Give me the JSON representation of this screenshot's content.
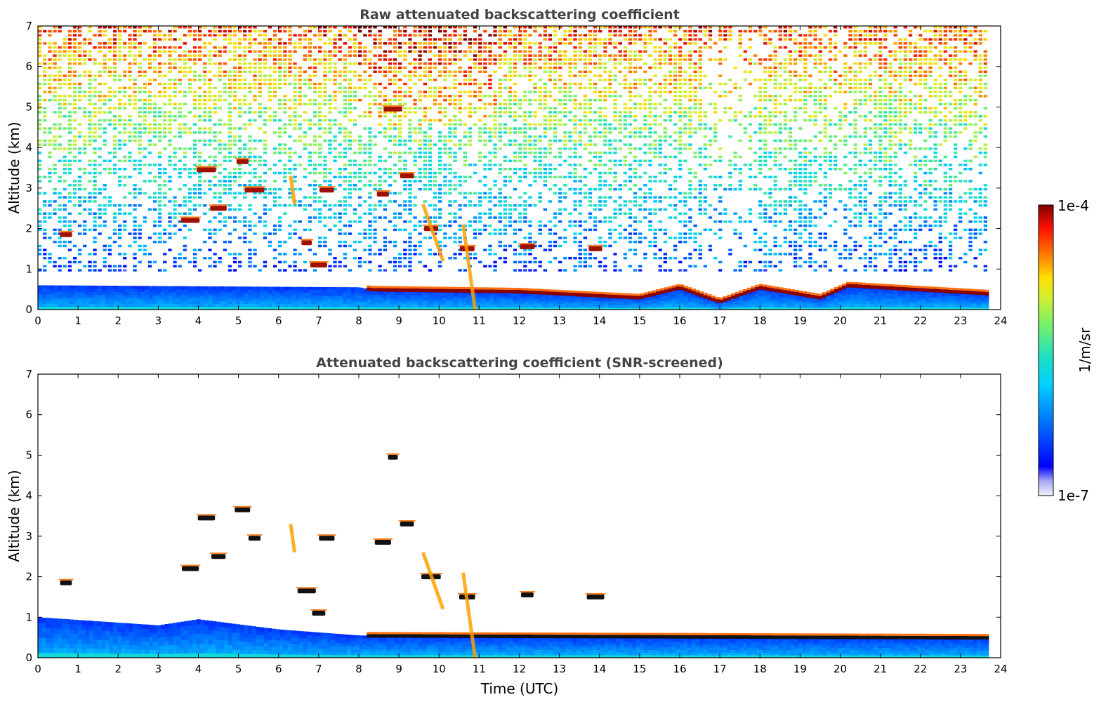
{
  "chart_data": [
    {
      "type": "heatmap",
      "title": "Raw attenuated backscattering coefficient",
      "xlabel": "",
      "ylabel": "Altitude (km)",
      "xlim": [
        0,
        24
      ],
      "ylim": [
        0,
        7
      ],
      "xticks": [
        "0",
        "1",
        "2",
        "3",
        "4",
        "5",
        "6",
        "7",
        "8",
        "9",
        "10",
        "11",
        "12",
        "13",
        "14",
        "15",
        "16",
        "17",
        "18",
        "19",
        "20",
        "21",
        "22",
        "23",
        "24"
      ],
      "yticks": [
        "0",
        "1",
        "2",
        "3",
        "4",
        "5",
        "6",
        "7"
      ],
      "data_end_time": 23.7,
      "boundary_layer_top_km": [
        {
          "t": 0,
          "alt": 0.6
        },
        {
          "t": 8,
          "alt": 0.55
        },
        {
          "t": 8.3,
          "alt": 0.5
        },
        {
          "t": 12,
          "alt": 0.45
        },
        {
          "t": 15,
          "alt": 0.3
        },
        {
          "t": 16,
          "alt": 0.55
        },
        {
          "t": 17,
          "alt": 0.2
        },
        {
          "t": 18,
          "alt": 0.55
        },
        {
          "t": 19.5,
          "alt": 0.3
        },
        {
          "t": 20.2,
          "alt": 0.6
        },
        {
          "t": 23.7,
          "alt": 0.4
        }
      ],
      "cloud_features": [
        {
          "t": 0.7,
          "alt": 1.85
        },
        {
          "t": 3.8,
          "alt": 2.2
        },
        {
          "t": 4.2,
          "alt": 3.45
        },
        {
          "t": 4.5,
          "alt": 2.5
        },
        {
          "t": 5.1,
          "alt": 3.65
        },
        {
          "t": 5.4,
          "alt": 2.95
        },
        {
          "t": 6.7,
          "alt": 1.65
        },
        {
          "t": 7.0,
          "alt": 1.1
        },
        {
          "t": 7.2,
          "alt": 2.95
        },
        {
          "t": 8.6,
          "alt": 2.85
        },
        {
          "t": 8.85,
          "alt": 4.95
        },
        {
          "t": 9.2,
          "alt": 3.3
        },
        {
          "t": 9.8,
          "alt": 2.0
        },
        {
          "t": 10.7,
          "alt": 1.5
        },
        {
          "t": 12.2,
          "alt": 1.55
        },
        {
          "t": 13.9,
          "alt": 1.5
        }
      ]
    },
    {
      "type": "heatmap",
      "title": "Attenuated backscattering coefficient (SNR-screened)",
      "xlabel": "Time (UTC)",
      "ylabel": "Altitude (km)",
      "xlim": [
        0,
        24
      ],
      "ylim": [
        0,
        7
      ],
      "xticks": [
        "0",
        "1",
        "2",
        "3",
        "4",
        "5",
        "6",
        "7",
        "8",
        "9",
        "10",
        "11",
        "12",
        "13",
        "14",
        "15",
        "16",
        "17",
        "18",
        "19",
        "20",
        "21",
        "22",
        "23",
        "24"
      ],
      "yticks": [
        "0",
        "1",
        "2",
        "3",
        "4",
        "5",
        "6",
        "7"
      ],
      "data_end_time": 23.7,
      "screened_layer_top_km": [
        {
          "t": 0,
          "alt": 1.0
        },
        {
          "t": 3,
          "alt": 0.8
        },
        {
          "t": 4,
          "alt": 0.95
        },
        {
          "t": 6,
          "alt": 0.7
        },
        {
          "t": 8,
          "alt": 0.55
        },
        {
          "t": 23.7,
          "alt": 0.5
        }
      ]
    }
  ],
  "colorbar": {
    "label": "1/m/sr",
    "max_label": "1e-4",
    "min_label": "1e-7",
    "scale": "log",
    "range": [
      1e-07,
      0.0001
    ]
  }
}
